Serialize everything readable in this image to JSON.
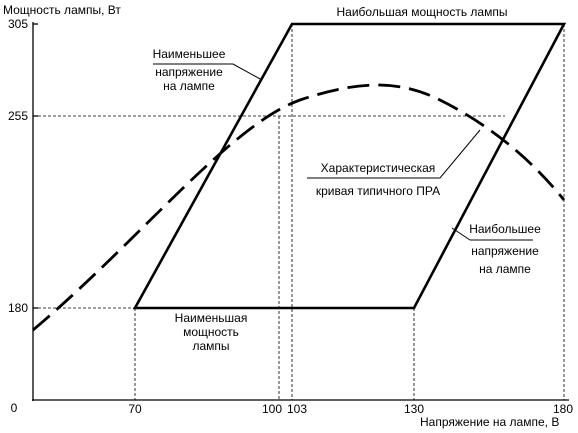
{
  "chart_data": {
    "type": "line",
    "ylabel": "Мощность лампы, Вт",
    "xlabel": "Напряжение на лампе, В",
    "x_ticks": [
      "0",
      "70",
      "100",
      "103",
      "130",
      "180"
    ],
    "y_ticks": [
      "0",
      "180",
      "255",
      "305"
    ],
    "trapezoid": [
      {
        "x": 70,
        "y": 180
      },
      {
        "x": 130,
        "y": 180
      },
      {
        "x": 180,
        "y": 305
      },
      {
        "x": 103,
        "y": 305
      }
    ],
    "ballast_curve": [
      {
        "x": 0,
        "y": 153
      },
      {
        "x": 30,
        "y": 185
      },
      {
        "x": 60,
        "y": 215
      },
      {
        "x": 85,
        "y": 244
      },
      {
        "x": 103,
        "y": 258
      },
      {
        "x": 115,
        "y": 268
      },
      {
        "x": 130,
        "y": 275
      },
      {
        "x": 140,
        "y": 276
      },
      {
        "x": 150,
        "y": 270
      },
      {
        "x": 160,
        "y": 257
      },
      {
        "x": 170,
        "y": 236
      },
      {
        "x": 180,
        "y": 212
      }
    ],
    "annotations": {
      "max_power": "Наибольшая мощность лампы",
      "min_voltage": [
        "Наименьшее",
        "напряжение",
        "на лампе"
      ],
      "ballast_curve": [
        "Характеристическая",
        "кривая типичного ПРА"
      ],
      "max_voltage": [
        "Наибольшее",
        "напряжение",
        "на лампе"
      ],
      "min_power": [
        "Наименьшая",
        "мощность",
        "лампы"
      ]
    }
  }
}
